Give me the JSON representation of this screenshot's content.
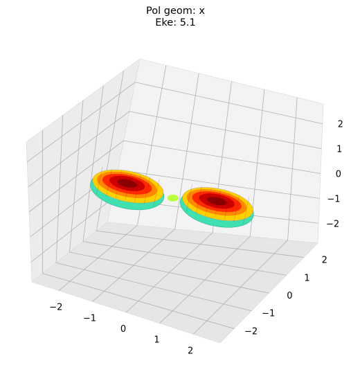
{
  "figure": {
    "title_line1": "Pol geom: x",
    "title_line2": "Eke: 5.1"
  },
  "chart_data": {
    "type": "surface3d",
    "title": "Pol geom: x\nEke: 5.1",
    "xlabel": "",
    "ylabel": "",
    "zlabel": "",
    "xlim": [
      -2.8,
      2.8
    ],
    "ylim": [
      -2.8,
      2.8
    ],
    "zlim": [
      -2.8,
      2.8
    ],
    "x_ticks": [
      "−2",
      "−1",
      "0",
      "1",
      "2"
    ],
    "y_ticks": [
      "−2",
      "−1",
      "0",
      "1",
      "2"
    ],
    "z_ticks": [
      "−2",
      "−1",
      "0",
      "1",
      "2"
    ],
    "x_tick_values": [
      -2,
      -1,
      0,
      1,
      2
    ],
    "y_tick_values": [
      -2,
      -1,
      0,
      1,
      2
    ],
    "z_tick_values": [
      -2,
      -1,
      0,
      1,
      2
    ],
    "grid": true,
    "colormap": "jet",
    "lobes": [
      {
        "name": "",
        "center": [
          -1.3,
          0,
          0
        ],
        "radius": 1.3,
        "orientation": "x"
      },
      {
        "name": "",
        "center": [
          1.3,
          0,
          0
        ],
        "radius": 1.3,
        "orientation": "x"
      }
    ],
    "colors": {
      "pane": "#f2f2f2",
      "grid": "#b0b0b0",
      "hot": "#cc0000",
      "warm": "#ff8800",
      "cool": "#40e0b0"
    }
  }
}
